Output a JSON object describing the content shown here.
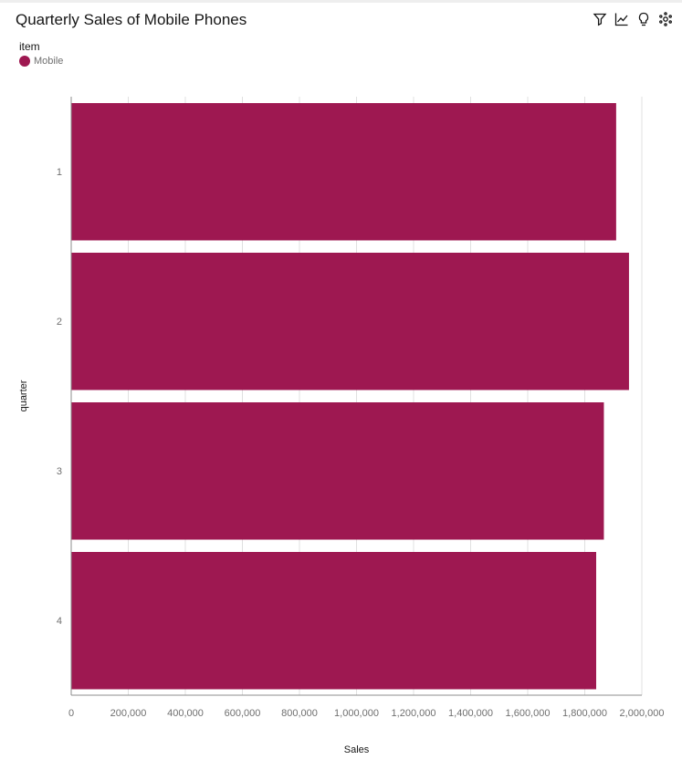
{
  "header": {
    "title": "Quarterly Sales of Mobile Phones",
    "toolbar": [
      {
        "name": "filter-icon"
      },
      {
        "name": "line-chart-icon"
      },
      {
        "name": "lightbulb-icon"
      },
      {
        "name": "settings-icon"
      }
    ]
  },
  "legend": {
    "title": "item",
    "items": [
      {
        "label": "Mobile",
        "color": "#9e1851"
      }
    ]
  },
  "chart_data": {
    "type": "bar",
    "orientation": "horizontal",
    "categories": [
      "1",
      "2",
      "3",
      "4"
    ],
    "series": [
      {
        "name": "Mobile",
        "values": [
          1910000,
          1955000,
          1867000,
          1840000
        ]
      }
    ],
    "xlabel": "Sales",
    "ylabel": "quarter",
    "xlim": [
      0,
      2000000
    ],
    "xticks": [
      "0",
      "200,000",
      "400,000",
      "600,000",
      "800,000",
      "1,000,000",
      "1,200,000",
      "1,400,000",
      "1,600,000",
      "1,800,000",
      "2,000,000"
    ],
    "grid": true,
    "legend_position": "top-left",
    "colors": {
      "bar": "#9e1851",
      "grid": "#e0e0e0",
      "axis": "#8d8d8d",
      "tick_label": "#6f6f6f",
      "axis_label": "#161616"
    }
  }
}
